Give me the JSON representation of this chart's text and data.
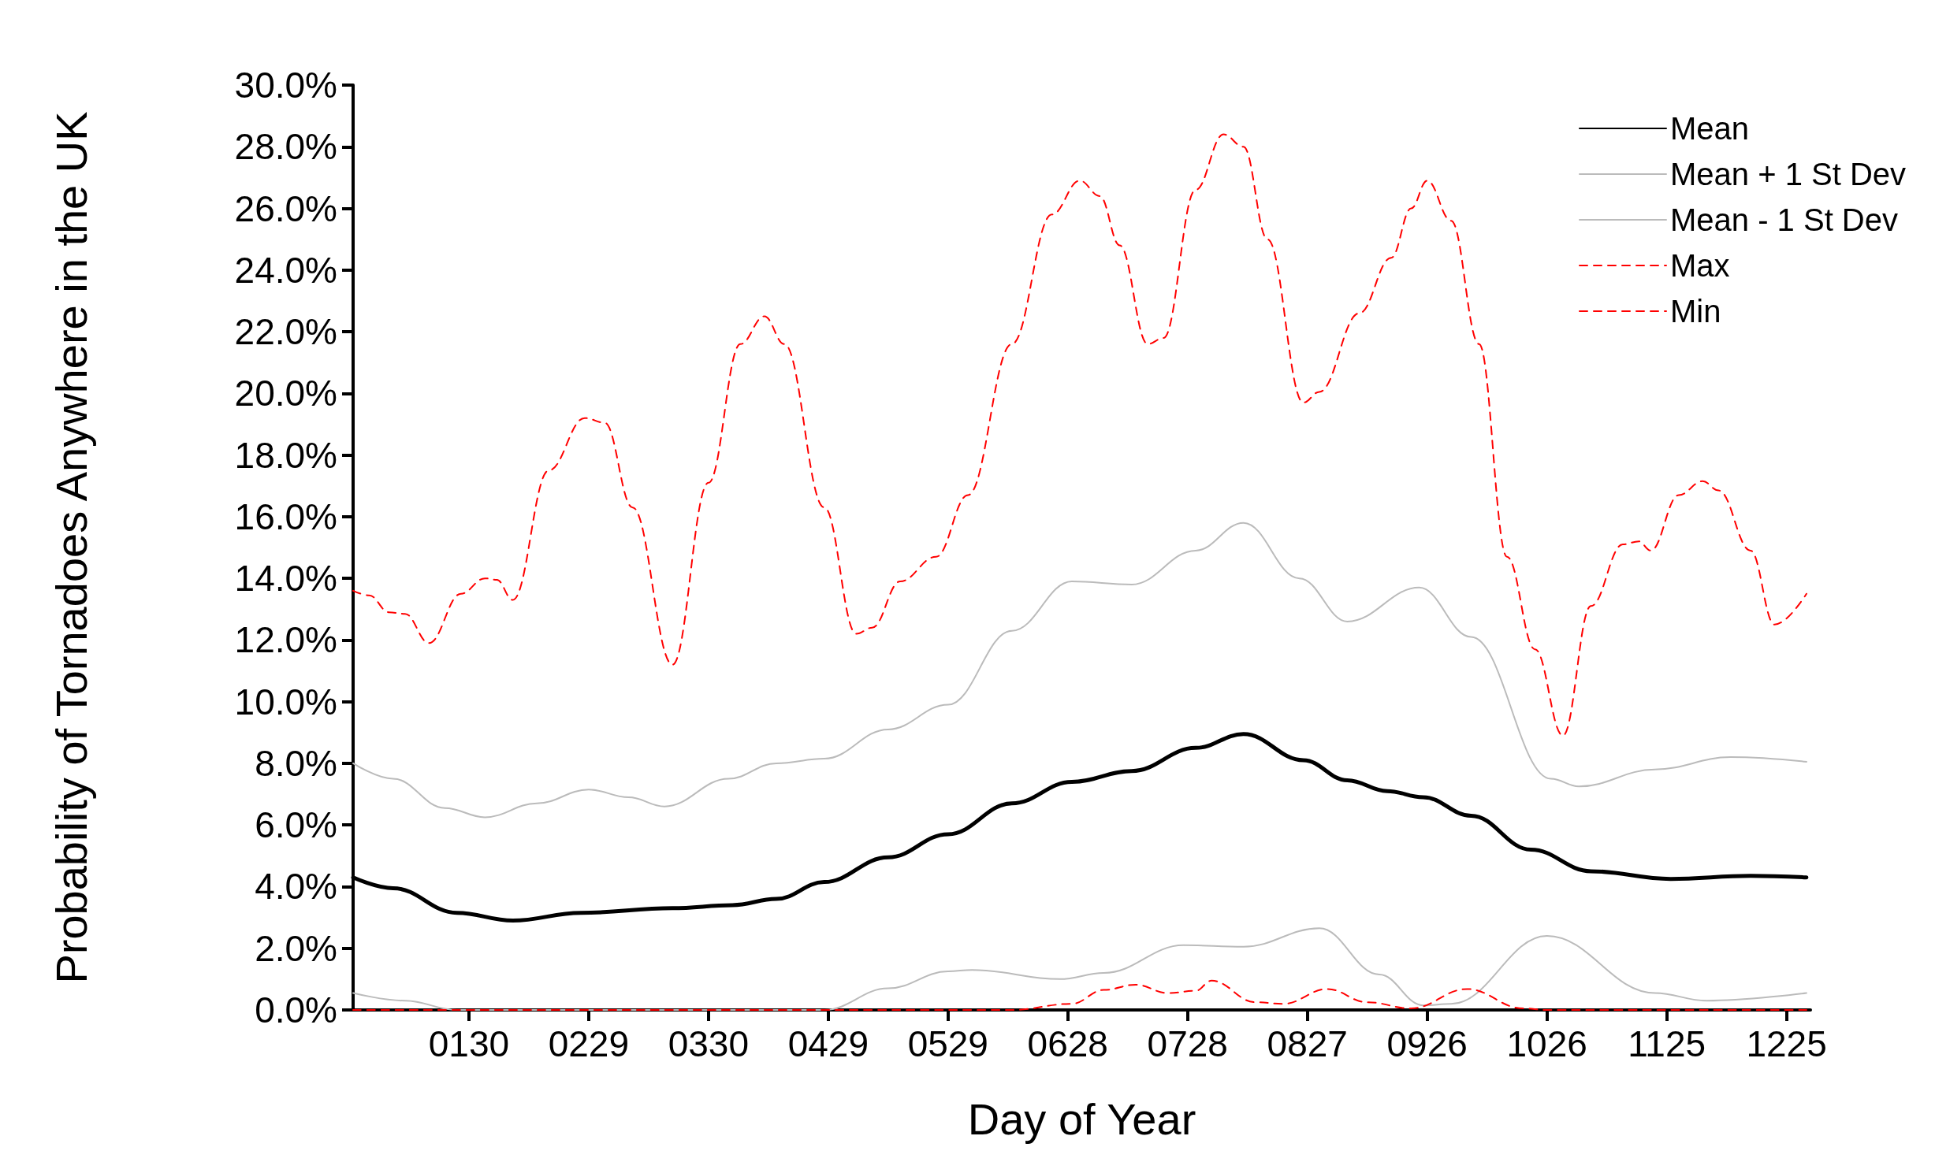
{
  "chart_data": {
    "type": "line",
    "xlabel": "Day of Year",
    "ylabel": "Probability of Tornadoes Anywhere in the UK",
    "xlim": [
      "--01-01",
      "--12-31"
    ],
    "xticks": [
      {
        "value": "--01-30",
        "label": "0130"
      },
      {
        "value": "--02-29",
        "label": "0229"
      },
      {
        "value": "--03-30",
        "label": "0330"
      },
      {
        "value": "--04-29",
        "label": "0429"
      },
      {
        "value": "--05-29",
        "label": "0529"
      },
      {
        "value": "--06-28",
        "label": "0628"
      },
      {
        "value": "--07-28",
        "label": "0728"
      },
      {
        "value": "--08-27",
        "label": "0827"
      },
      {
        "value": "--09-26",
        "label": "0926"
      },
      {
        "value": "--10-26",
        "label": "1026"
      },
      {
        "value": "--11-25",
        "label": "1125"
      },
      {
        "value": "--12-25",
        "label": "1225"
      }
    ],
    "ylim": [
      0,
      30
    ],
    "yticks": [
      {
        "value": 0,
        "label": "0.0%"
      },
      {
        "value": 2,
        "label": "2.0%"
      },
      {
        "value": 4,
        "label": "4.0%"
      },
      {
        "value": 6,
        "label": "6.0%"
      },
      {
        "value": 8,
        "label": "8.0%"
      },
      {
        "value": 10,
        "label": "10.0%"
      },
      {
        "value": 12,
        "label": "12.0%"
      },
      {
        "value": 14,
        "label": "14.0%"
      },
      {
        "value": 16,
        "label": "16.0%"
      },
      {
        "value": 18,
        "label": "18.0%"
      },
      {
        "value": 20,
        "label": "20.0%"
      },
      {
        "value": 22,
        "label": "22.0%"
      },
      {
        "value": 24,
        "label": "24.0%"
      },
      {
        "value": 26,
        "label": "26.0%"
      },
      {
        "value": 28,
        "label": "28.0%"
      },
      {
        "value": 30,
        "label": "30.0%"
      }
    ],
    "grid": false,
    "legend": "top right",
    "marker": "none",
    "series": [
      {
        "name": "Mean",
        "color": "#000000",
        "line_style": "solid",
        "x": [
          "--01-01",
          "--01-11",
          "--01-27",
          "--02-10",
          "--02-27",
          "--03-21",
          "--04-05",
          "--04-16",
          "--04-28",
          "--05-14",
          "--05-29",
          "--06-14",
          "--06-29",
          "--07-14",
          "--07-30",
          "--08-11",
          "--08-26",
          "--09-06",
          "--09-16",
          "--09-25",
          "--10-07",
          "--10-22",
          "--11-06",
          "--11-26",
          "--12-16",
          "--12-30"
        ],
        "values": [
          4.3,
          3.95,
          3.15,
          2.9,
          3.15,
          3.3,
          3.4,
          3.6,
          4.15,
          4.95,
          5.7,
          6.7,
          7.4,
          7.75,
          8.5,
          8.95,
          8.1,
          7.45,
          7.1,
          6.9,
          6.3,
          5.2,
          4.5,
          4.25,
          4.35,
          4.3
        ]
      },
      {
        "name": "Mean + 1 St Dev",
        "color": "#bbbbbb",
        "line_style": "solid",
        "x": [
          "--01-01",
          "--01-11",
          "--01-24",
          "--02-03",
          "--02-16",
          "--02-29",
          "--03-10",
          "--03-19",
          "--04-04",
          "--04-16",
          "--04-28",
          "--05-14",
          "--05-29",
          "--06-14",
          "--06-29",
          "--07-14",
          "--07-30",
          "--08-11",
          "--08-25",
          "--09-06",
          "--09-24",
          "--10-07",
          "--10-27",
          "--11-03",
          "--11-22",
          "--12-11",
          "--12-30"
        ],
        "values": [
          8.0,
          7.5,
          6.55,
          6.25,
          6.7,
          7.15,
          6.9,
          6.6,
          7.5,
          8.0,
          8.15,
          9.1,
          9.9,
          12.3,
          13.9,
          13.8,
          14.9,
          15.8,
          14.0,
          12.6,
          13.7,
          12.1,
          7.5,
          7.25,
          7.8,
          8.2,
          8.05
        ]
      },
      {
        "name": "Mean - 1 St Dev",
        "color": "#bbbbbb",
        "line_style": "solid",
        "x": [
          "--01-01",
          "--01-14",
          "--01-27",
          "--04-28",
          "--05-14",
          "--05-29",
          "--06-04",
          "--06-26",
          "--07-07",
          "--07-27",
          "--08-11",
          "--08-30",
          "--09-14",
          "--09-25",
          "--10-02",
          "--10-26",
          "--11-22",
          "--12-05",
          "--12-30"
        ],
        "values": [
          0.55,
          0.3,
          0,
          0,
          0.7,
          1.25,
          1.3,
          1.0,
          1.2,
          2.1,
          2.05,
          2.65,
          1.15,
          0.15,
          0.2,
          2.4,
          0.55,
          0.3,
          0.55
        ]
      },
      {
        "name": "Max",
        "color": "#ff0000",
        "line_style": "dashed",
        "x": [
          "--01-01",
          "--01-05",
          "--01-10",
          "--01-14",
          "--01-20",
          "--01-28",
          "--02-03",
          "--02-06",
          "--02-10",
          "--02-19",
          "--02-28",
          "--03-04",
          "--03-11",
          "--03-21",
          "--03-30",
          "--04-07",
          "--04-13",
          "--04-18",
          "--04-28",
          "--05-06",
          "--05-10",
          "--05-17",
          "--05-26",
          "--06-03",
          "--06-14",
          "--06-24",
          "--07-01",
          "--07-06",
          "--07-11",
          "--07-18",
          "--07-22",
          "--07-30",
          "--08-06",
          "--08-11",
          "--08-17",
          "--08-26",
          "--08-30",
          "--09-09",
          "--09-17",
          "--09-22",
          "--09-26",
          "--10-02",
          "--10-09",
          "--10-16",
          "--10-23",
          "--10-30",
          "--11-06",
          "--11-14",
          "--11-18",
          "--11-21",
          "--11-28",
          "--12-04",
          "--12-08",
          "--12-16",
          "--12-22",
          "--12-30"
        ],
        "values": [
          13.6,
          13.45,
          12.9,
          12.85,
          11.9,
          13.5,
          14.0,
          13.95,
          13.3,
          17.5,
          19.2,
          19.05,
          16.3,
          11.2,
          17.1,
          21.6,
          22.5,
          21.6,
          16.3,
          12.2,
          12.4,
          13.9,
          14.7,
          16.7,
          21.6,
          25.8,
          26.9,
          26.4,
          24.8,
          21.6,
          21.8,
          26.6,
          28.4,
          28.0,
          25.0,
          19.7,
          20.05,
          22.6,
          24.4,
          26.0,
          26.9,
          25.6,
          21.6,
          14.7,
          11.7,
          8.9,
          13.1,
          15.1,
          15.2,
          14.9,
          16.7,
          17.15,
          16.85,
          14.9,
          12.5,
          13.5
        ]
      },
      {
        "name": "Min",
        "color": "#ff0000",
        "line_style": "dashed",
        "x": [
          "--01-01",
          "--06-14",
          "--06-29",
          "--07-07",
          "--07-15",
          "--07-23",
          "--07-30",
          "--08-03",
          "--08-14",
          "--08-21",
          "--09-01",
          "--09-11",
          "--09-22",
          "--10-06",
          "--10-20",
          "--10-26",
          "--12-30"
        ],
        "values": [
          0,
          0,
          0.2,
          0.65,
          0.82,
          0.55,
          0.62,
          0.95,
          0.25,
          0.2,
          0.68,
          0.25,
          0.05,
          0.68,
          0.05,
          0,
          0
        ]
      }
    ]
  }
}
